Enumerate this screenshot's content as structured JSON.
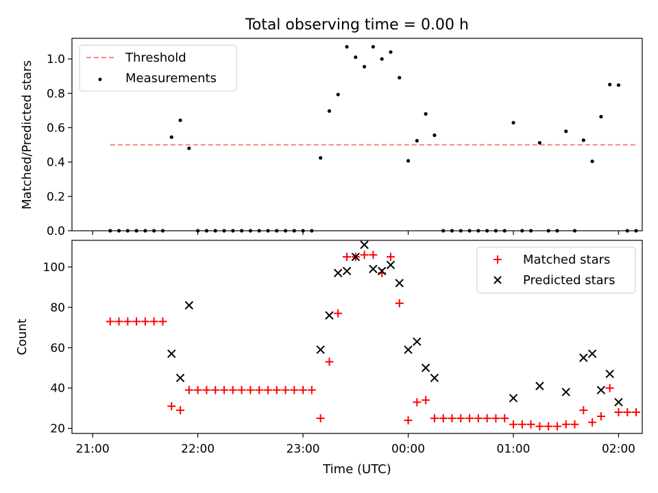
{
  "figure": {
    "title": "Total observing time = 0.00 h",
    "xlabel": "Time (UTC)",
    "xticks": [
      {
        "value": 0,
        "label": "21:00"
      },
      {
        "value": 60,
        "label": "22:00"
      },
      {
        "value": 120,
        "label": "23:00"
      },
      {
        "value": 180,
        "label": "00:00"
      },
      {
        "value": 240,
        "label": "01:00"
      },
      {
        "value": 300,
        "label": "02:00"
      }
    ],
    "colors": {
      "threshold": "#ff7f7f",
      "measurements": "#000000",
      "matched": "#ff0000",
      "predicted": "#000000"
    }
  },
  "chart_data": [
    {
      "type": "scatter",
      "ylabel": "Matched/Predicted stars",
      "xlim": [
        -11.8,
        313.5
      ],
      "ylim": [
        0,
        1.12
      ],
      "yticks": [
        0.0,
        0.2,
        0.4,
        0.6,
        0.8,
        1.0
      ],
      "legend": {
        "location": "upper left"
      },
      "threshold": {
        "name": "Threshold",
        "value": 0.5,
        "x": [
          10,
          310
        ]
      },
      "series": [
        {
          "name": "Measurements",
          "marker": "dot",
          "points": [
            [
              10,
              0
            ],
            [
              15,
              0
            ],
            [
              20,
              0
            ],
            [
              25,
              0
            ],
            [
              30,
              0
            ],
            [
              35,
              0
            ],
            [
              40,
              0
            ],
            [
              45,
              0.545
            ],
            [
              50,
              0.643
            ],
            [
              55,
              0.48
            ],
            [
              60,
              0
            ],
            [
              65,
              0
            ],
            [
              70,
              0
            ],
            [
              75,
              0
            ],
            [
              80,
              0
            ],
            [
              85,
              0
            ],
            [
              90,
              0
            ],
            [
              95,
              0
            ],
            [
              100,
              0
            ],
            [
              105,
              0
            ],
            [
              110,
              0
            ],
            [
              115,
              0
            ],
            [
              120,
              0
            ],
            [
              125,
              0
            ],
            [
              130,
              0.424
            ],
            [
              135,
              0.697
            ],
            [
              140,
              0.793
            ],
            [
              145,
              1.071
            ],
            [
              150,
              1.01
            ],
            [
              155,
              0.955
            ],
            [
              160,
              1.071
            ],
            [
              165,
              1.0
            ],
            [
              170,
              1.04
            ],
            [
              175,
              0.891
            ],
            [
              180,
              0.407
            ],
            [
              185,
              0.524
            ],
            [
              190,
              0.68
            ],
            [
              195,
              0.556
            ],
            [
              200,
              0
            ],
            [
              205,
              0
            ],
            [
              210,
              0
            ],
            [
              215,
              0
            ],
            [
              220,
              0
            ],
            [
              225,
              0
            ],
            [
              230,
              0
            ],
            [
              235,
              0
            ],
            [
              240,
              0.629
            ],
            [
              245,
              0
            ],
            [
              250,
              0
            ],
            [
              255,
              0.512
            ],
            [
              260,
              0
            ],
            [
              265,
              0
            ],
            [
              270,
              0.579
            ],
            [
              275,
              0
            ],
            [
              280,
              0.527
            ],
            [
              285,
              0.404
            ],
            [
              290,
              0.664
            ],
            [
              295,
              0.851
            ],
            [
              300,
              0.848
            ],
            [
              305,
              0
            ],
            [
              310,
              0
            ]
          ]
        }
      ]
    },
    {
      "type": "scatter",
      "ylabel": "Count",
      "xlim": [
        -11.8,
        313.5
      ],
      "ylim": [
        17.5,
        113.2
      ],
      "yticks": [
        20,
        40,
        60,
        80,
        100
      ],
      "legend": {
        "location": "upper right"
      },
      "series": [
        {
          "name": "Matched stars",
          "marker": "plus",
          "points": [
            [
              10,
              73
            ],
            [
              15,
              73
            ],
            [
              20,
              73
            ],
            [
              25,
              73
            ],
            [
              30,
              73
            ],
            [
              35,
              73
            ],
            [
              40,
              73
            ],
            [
              45,
              31
            ],
            [
              50,
              29
            ],
            [
              55,
              39
            ],
            [
              60,
              39
            ],
            [
              65,
              39
            ],
            [
              70,
              39
            ],
            [
              75,
              39
            ],
            [
              80,
              39
            ],
            [
              85,
              39
            ],
            [
              90,
              39
            ],
            [
              95,
              39
            ],
            [
              100,
              39
            ],
            [
              105,
              39
            ],
            [
              110,
              39
            ],
            [
              115,
              39
            ],
            [
              120,
              39
            ],
            [
              125,
              39
            ],
            [
              130,
              25
            ],
            [
              135,
              53
            ],
            [
              140,
              77
            ],
            [
              145,
              105
            ],
            [
              150,
              105
            ],
            [
              155,
              106
            ],
            [
              160,
              106
            ],
            [
              165,
              97
            ],
            [
              170,
              105
            ],
            [
              175,
              82
            ],
            [
              180,
              24
            ],
            [
              185,
              33
            ],
            [
              190,
              34
            ],
            [
              195,
              25
            ],
            [
              200,
              25
            ],
            [
              205,
              25
            ],
            [
              210,
              25
            ],
            [
              215,
              25
            ],
            [
              220,
              25
            ],
            [
              225,
              25
            ],
            [
              230,
              25
            ],
            [
              235,
              25
            ],
            [
              240,
              22
            ],
            [
              245,
              22
            ],
            [
              250,
              22
            ],
            [
              255,
              21
            ],
            [
              260,
              21
            ],
            [
              265,
              21
            ],
            [
              270,
              22
            ],
            [
              275,
              22
            ],
            [
              280,
              29
            ],
            [
              285,
              23
            ],
            [
              290,
              26
            ],
            [
              295,
              40
            ],
            [
              300,
              28
            ],
            [
              305,
              28
            ],
            [
              310,
              28
            ]
          ]
        },
        {
          "name": "Predicted stars",
          "marker": "x",
          "points": [
            [
              45,
              57
            ],
            [
              50,
              45
            ],
            [
              55,
              81
            ],
            [
              130,
              59
            ],
            [
              135,
              76
            ],
            [
              140,
              97
            ],
            [
              145,
              98
            ],
            [
              150,
              105
            ],
            [
              155,
              111
            ],
            [
              160,
              99
            ],
            [
              165,
              98
            ],
            [
              170,
              101
            ],
            [
              175,
              92
            ],
            [
              180,
              59
            ],
            [
              185,
              63
            ],
            [
              190,
              50
            ],
            [
              195,
              45
            ],
            [
              240,
              35
            ],
            [
              255,
              41
            ],
            [
              270,
              38
            ],
            [
              280,
              55
            ],
            [
              285,
              57
            ],
            [
              290,
              39
            ],
            [
              295,
              47
            ],
            [
              300,
              33
            ]
          ]
        }
      ]
    }
  ]
}
